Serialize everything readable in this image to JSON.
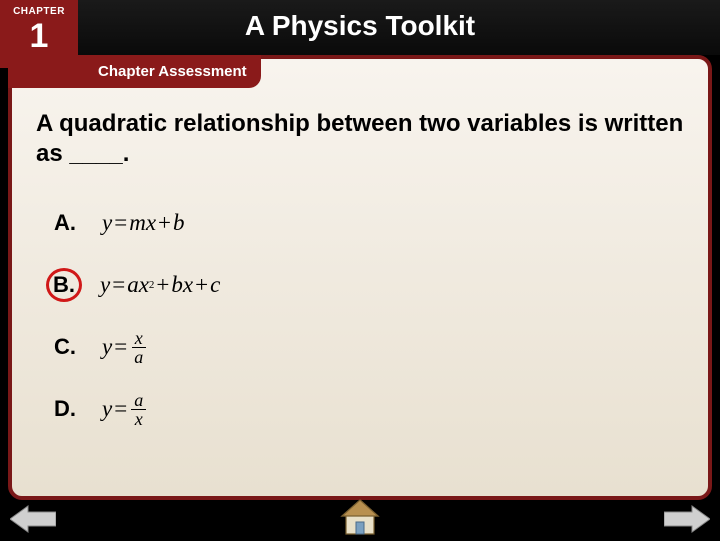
{
  "chapter": {
    "label": "CHAPTER",
    "number": "1"
  },
  "title": "A Physics Toolkit",
  "sectionTab": "Chapter Assessment",
  "question": "A quadratic relationship between two variables is written as ____.",
  "choices": [
    {
      "letter": "A.",
      "correct": false,
      "fLeft": "y",
      "fRight_html": "<span>mx</span><span class='sp'>+</span><span>b</span>"
    },
    {
      "letter": "B.",
      "correct": true,
      "fLeft": "y",
      "fRight_html": "<span>ax</span><sup>2</sup><span class='sp'>+</span><span>bx</span><span class='sp'>+</span><span>c</span>"
    },
    {
      "letter": "C.",
      "correct": false,
      "fLeft": "y",
      "fRight_html": "<span class='frac'><span class='num'>x</span><span class='den'>a</span></span>"
    },
    {
      "letter": "D.",
      "correct": false,
      "fLeft": "y",
      "fRight_html": "<span class='frac'><span class='num'>a</span><span class='den'>x</span></span>"
    }
  ],
  "colors": {
    "tabRed": "#8a1a1a",
    "borderRed": "#7a1818",
    "circleRed": "#d01818",
    "panelTop": "#f8f4ee",
    "panelBottom": "#e8e0d0",
    "arrowFill": "#cfcfcf",
    "arrowStroke": "#888",
    "homeFill": "#e8e0c8",
    "homeRoof": "#b89050"
  }
}
